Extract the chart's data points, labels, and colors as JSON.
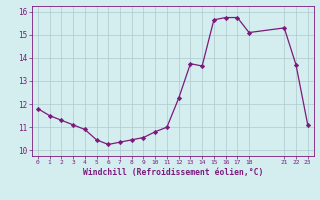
{
  "x": [
    0,
    1,
    2,
    3,
    4,
    5,
    6,
    7,
    8,
    9,
    10,
    11,
    12,
    13,
    14,
    15,
    16,
    17,
    18,
    21,
    22,
    23
  ],
  "y": [
    11.8,
    11.5,
    11.3,
    11.1,
    10.9,
    10.45,
    10.25,
    10.35,
    10.45,
    10.55,
    10.8,
    11.0,
    12.25,
    13.75,
    13.65,
    15.65,
    15.75,
    15.75,
    15.1,
    15.3,
    13.7,
    11.1
  ],
  "xlabel": "Windchill (Refroidissement éolien,°C)",
  "xlim": [
    -0.5,
    23.5
  ],
  "ylim": [
    9.75,
    16.25
  ],
  "yticks": [
    10,
    11,
    12,
    13,
    14,
    15,
    16
  ],
  "xticks": [
    0,
    1,
    2,
    3,
    4,
    5,
    6,
    7,
    8,
    9,
    10,
    11,
    12,
    13,
    14,
    15,
    16,
    17,
    18,
    21,
    22,
    23
  ],
  "line_color": "#7b1a7b",
  "bg_color": "#d4eef0",
  "grid_color": "#b0c8cc",
  "fig_bg": "#d4eef0"
}
